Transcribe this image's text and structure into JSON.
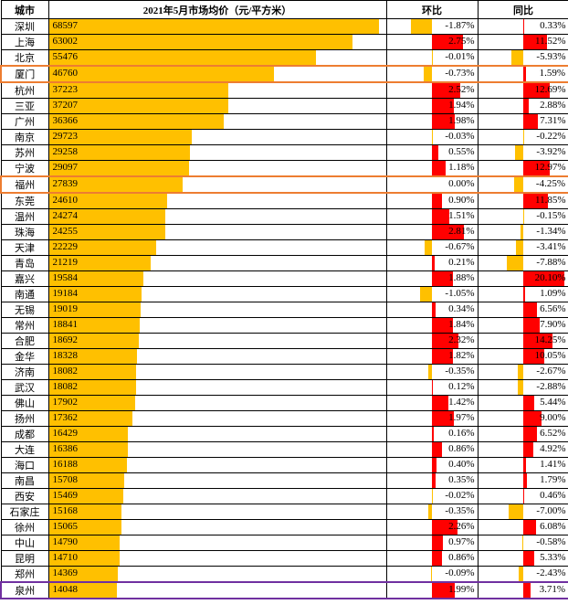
{
  "headers": {
    "city": "城市",
    "price": "2021年5月市场均价（元/平方米）",
    "mom": "环比",
    "yoy": "同比"
  },
  "style": {
    "price_bar_color": "#ffc000",
    "pos_bar_color": "#ff0000",
    "neg_bar_color": "#ffc000",
    "border_color": "#000000",
    "highlight_orange": "#ed7d31",
    "highlight_purple": "#7030a0",
    "font_size": 11,
    "price_max": 70000,
    "mom_scale": 4.0,
    "yoy_scale": 22.0,
    "mom_red_threshold": 1.8,
    "yoy_red_threshold": 7.0
  },
  "rows": [
    {
      "city": "深圳",
      "price": 68597,
      "mom": -1.87,
      "yoy": 0.33,
      "hl": ""
    },
    {
      "city": "上海",
      "price": 63002,
      "mom": 2.75,
      "yoy": 11.52,
      "hl": ""
    },
    {
      "city": "北京",
      "price": 55476,
      "mom": -0.01,
      "yoy": -5.93,
      "hl": ""
    },
    {
      "city": "厦门",
      "price": 46760,
      "mom": -0.73,
      "yoy": 1.59,
      "hl": "orange"
    },
    {
      "city": "杭州",
      "price": 37223,
      "mom": 2.52,
      "yoy": 12.69,
      "hl": ""
    },
    {
      "city": "三亚",
      "price": 37207,
      "mom": 1.94,
      "yoy": 2.88,
      "hl": ""
    },
    {
      "city": "广州",
      "price": 36366,
      "mom": 1.98,
      "yoy": 7.31,
      "hl": ""
    },
    {
      "city": "南京",
      "price": 29723,
      "mom": -0.03,
      "yoy": -0.22,
      "hl": ""
    },
    {
      "city": "苏州",
      "price": 29258,
      "mom": 0.55,
      "yoy": -3.92,
      "hl": ""
    },
    {
      "city": "宁波",
      "price": 29097,
      "mom": 1.18,
      "yoy": 12.97,
      "hl": ""
    },
    {
      "city": "福州",
      "price": 27839,
      "mom": 0.0,
      "yoy": -4.25,
      "hl": "orange"
    },
    {
      "city": "东莞",
      "price": 24610,
      "mom": 0.9,
      "yoy": 11.85,
      "hl": ""
    },
    {
      "city": "温州",
      "price": 24274,
      "mom": 1.51,
      "yoy": -0.15,
      "hl": ""
    },
    {
      "city": "珠海",
      "price": 24255,
      "mom": 2.81,
      "yoy": -1.34,
      "hl": ""
    },
    {
      "city": "天津",
      "price": 22229,
      "mom": -0.67,
      "yoy": -3.41,
      "hl": ""
    },
    {
      "city": "青岛",
      "price": 21219,
      "mom": 0.21,
      "yoy": -7.88,
      "hl": ""
    },
    {
      "city": "嘉兴",
      "price": 19584,
      "mom": 1.88,
      "yoy": 20.1,
      "hl": ""
    },
    {
      "city": "南通",
      "price": 19184,
      "mom": -1.05,
      "yoy": 1.09,
      "hl": ""
    },
    {
      "city": "无锡",
      "price": 19019,
      "mom": 0.34,
      "yoy": 6.56,
      "hl": ""
    },
    {
      "city": "常州",
      "price": 18841,
      "mom": 1.84,
      "yoy": 7.9,
      "hl": ""
    },
    {
      "city": "合肥",
      "price": 18692,
      "mom": 2.32,
      "yoy": 14.25,
      "hl": ""
    },
    {
      "city": "金华",
      "price": 18328,
      "mom": 1.82,
      "yoy": 10.05,
      "hl": ""
    },
    {
      "city": "济南",
      "price": 18082,
      "mom": -0.35,
      "yoy": -2.67,
      "hl": ""
    },
    {
      "city": "武汉",
      "price": 18082,
      "mom": 0.12,
      "yoy": -2.88,
      "hl": ""
    },
    {
      "city": "佛山",
      "price": 17902,
      "mom": 1.42,
      "yoy": 5.44,
      "hl": ""
    },
    {
      "city": "扬州",
      "price": 17362,
      "mom": 1.97,
      "yoy": 9.0,
      "hl": ""
    },
    {
      "city": "成都",
      "price": 16429,
      "mom": 0.16,
      "yoy": 6.52,
      "hl": ""
    },
    {
      "city": "大连",
      "price": 16386,
      "mom": 0.86,
      "yoy": 4.92,
      "hl": ""
    },
    {
      "city": "海口",
      "price": 16188,
      "mom": 0.4,
      "yoy": 1.41,
      "hl": ""
    },
    {
      "city": "南昌",
      "price": 15708,
      "mom": 0.35,
      "yoy": 1.79,
      "hl": ""
    },
    {
      "city": "西安",
      "price": 15469,
      "mom": -0.02,
      "yoy": 0.46,
      "hl": ""
    },
    {
      "city": "石家庄",
      "price": 15168,
      "mom": -0.35,
      "yoy": -7.0,
      "hl": ""
    },
    {
      "city": "徐州",
      "price": 15065,
      "mom": 2.26,
      "yoy": 6.08,
      "hl": ""
    },
    {
      "city": "中山",
      "price": 14790,
      "mom": 0.97,
      "yoy": -0.58,
      "hl": ""
    },
    {
      "city": "昆明",
      "price": 14710,
      "mom": 0.86,
      "yoy": 5.33,
      "hl": ""
    },
    {
      "city": "郑州",
      "price": 14369,
      "mom": -0.09,
      "yoy": -2.43,
      "hl": ""
    },
    {
      "city": "泉州",
      "price": 14048,
      "mom": 1.99,
      "yoy": 3.71,
      "hl": "purple"
    }
  ]
}
